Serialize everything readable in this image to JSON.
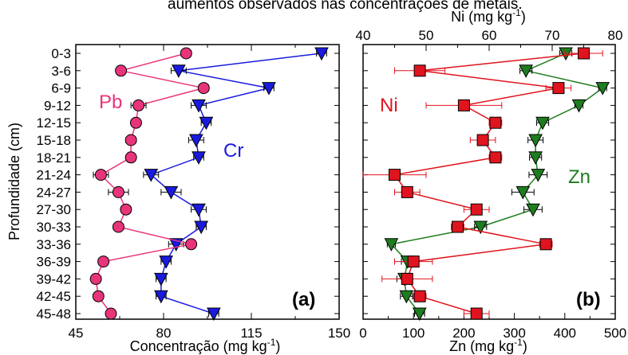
{
  "caption_fragment": "aumentos observados nas concentrações de metais.",
  "colors": {
    "pb": "#e8347a",
    "cr": "#1a1adf",
    "ni": "#e0141e",
    "zn": "#1e7d1e"
  },
  "chart_data": [
    {
      "type": "line",
      "panel_label": "(a)",
      "ylabel": "Profundidade (cm)",
      "xlabel": "Concentração (mg kg-1)",
      "xlabel_main": "Concentração (mg kg",
      "xlabel_sup": "-1",
      "xlabel_close": ")",
      "xlim": [
        45,
        150
      ],
      "xticks": [
        45,
        80,
        115,
        150
      ],
      "categories": [
        "0-3",
        "3-6",
        "6-9",
        "9-12",
        "12-15",
        "15-18",
        "18-21",
        "21-24",
        "24-27",
        "27-30",
        "30-33",
        "33-36",
        "36-39",
        "39-42",
        "42-45",
        "45-48"
      ],
      "series": [
        {
          "name": "Pb",
          "marker": "circle",
          "color": "#e8347a",
          "values": [
            89,
            63,
            96,
            70,
            69,
            67,
            67,
            55,
            62,
            65,
            62,
            91,
            56,
            53,
            54,
            59
          ],
          "err": [
            2,
            1,
            2,
            3,
            1,
            2,
            1,
            3,
            4,
            1,
            2,
            1,
            1,
            1,
            1,
            1
          ]
        },
        {
          "name": "Cr",
          "marker": "triangle-down",
          "color": "#1a1adf",
          "values": [
            143,
            86,
            122,
            94,
            97,
            93,
            94,
            75,
            83,
            94,
            95,
            85,
            81,
            79,
            79,
            100
          ],
          "err": [
            2,
            3,
            2,
            3,
            2,
            3,
            2,
            3,
            4,
            3,
            2,
            3,
            2,
            2,
            2,
            2
          ]
        }
      ]
    },
    {
      "type": "line",
      "panel_label": "(b)",
      "xlabel": "Zn (mg kg-1)",
      "xlabel_main": "Zn (mg kg",
      "xlabel_sup": "-1",
      "xlabel_close": ")",
      "x2label": "Ni (mg kg-1)",
      "x2label_main": "Ni (mg kg",
      "x2label_sup": "-1",
      "x2label_close": ")",
      "xlim": [
        0,
        500
      ],
      "xticks": [
        0,
        100,
        200,
        300,
        400,
        500
      ],
      "x2lim": [
        40,
        80
      ],
      "x2ticks": [
        40,
        50,
        60,
        70,
        80
      ],
      "categories": [
        "0-3",
        "3-6",
        "6-9",
        "9-12",
        "12-15",
        "15-18",
        "18-21",
        "21-24",
        "24-27",
        "27-30",
        "30-33",
        "33-36",
        "36-39",
        "39-42",
        "42-45",
        "45-48"
      ],
      "series": [
        {
          "name": "Ni",
          "axis": "top",
          "marker": "square",
          "color": "#e0141e",
          "values": [
            75,
            49,
            71,
            56,
            61,
            59,
            61,
            45,
            47,
            58,
            55,
            69,
            48,
            47,
            49,
            58
          ],
          "err": [
            3,
            4,
            2,
            6,
            1,
            2,
            1,
            5,
            2,
            2,
            1,
            1,
            3,
            4,
            1,
            2
          ]
        },
        {
          "name": "Zn",
          "axis": "bottom",
          "marker": "triangle-down",
          "color": "#1e7d1e",
          "values": [
            402,
            323,
            475,
            428,
            356,
            342,
            342,
            347,
            317,
            337,
            233,
            56,
            88,
            82,
            86,
            112
          ],
          "err": [
            12,
            12,
            8,
            8,
            12,
            15,
            12,
            18,
            22,
            18,
            12,
            8,
            12,
            15,
            12,
            10
          ]
        }
      ]
    }
  ]
}
